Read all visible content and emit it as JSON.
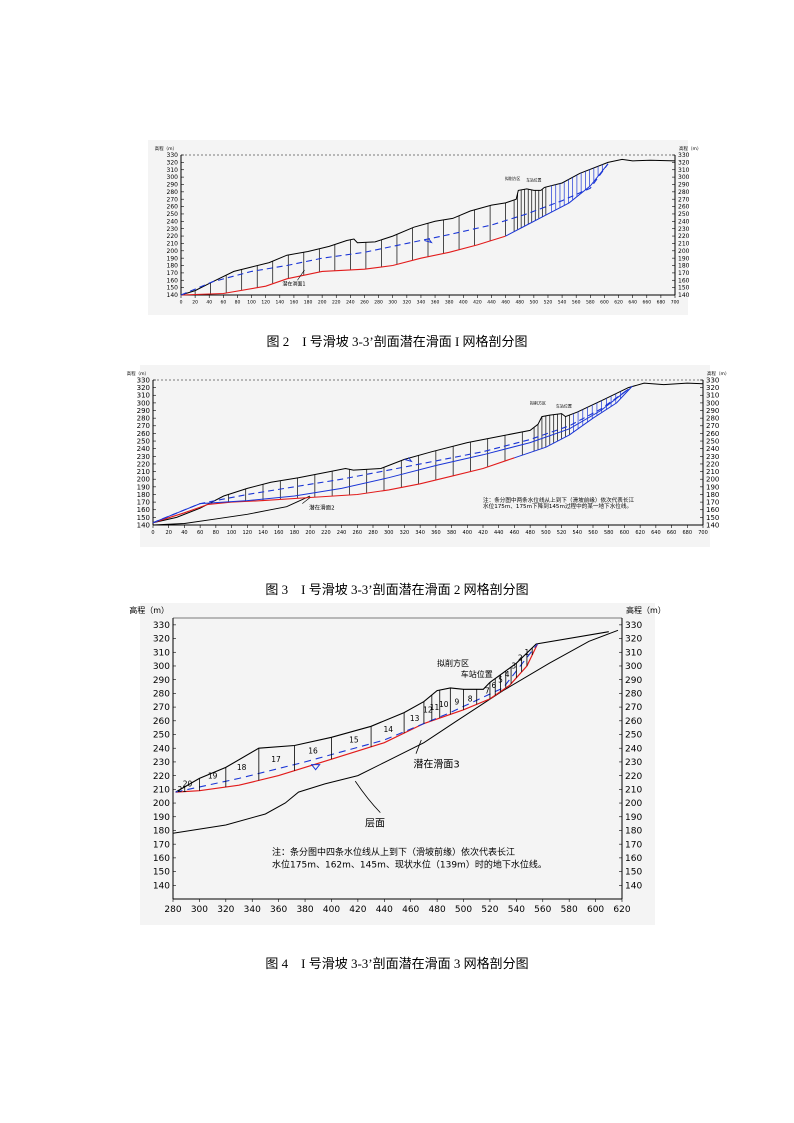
{
  "colors": {
    "ground": "#000000",
    "slip": "#e21b1b",
    "water": "#1a35d6",
    "panel": "#f4f4f4"
  },
  "figures": [
    {
      "id": "fig2",
      "caption": "图 2　I 号滑坡 3-3’剖面潜在滑面 I 网格剖分图",
      "y_axis_title_left": "高程（m）",
      "y_axis_title_right": "高程（m）",
      "y_ticks": [
        "330",
        "320",
        "310",
        "300",
        "290",
        "280",
        "270",
        "260",
        "250",
        "240",
        "230",
        "220",
        "210",
        "200",
        "190",
        "180",
        "170",
        "160",
        "150",
        "140"
      ],
      "x_ticks": [
        "0",
        "20",
        "40",
        "60",
        "80",
        "100",
        "120",
        "140",
        "160",
        "180",
        "200",
        "220",
        "240",
        "260",
        "280",
        "300",
        "320",
        "340",
        "360",
        "380",
        "400",
        "420",
        "440",
        "460",
        "480",
        "500",
        "520",
        "540",
        "560",
        "580",
        "600",
        "620",
        "640",
        "660",
        "680",
        "700"
      ],
      "labels": {
        "surface": "潜在滑面1",
        "note1": "拟削方区",
        "note2": "车站位置"
      }
    },
    {
      "id": "fig3",
      "caption": "图 3　I 号滑坡 3-3’剖面潜在滑面 2 网格剖分图",
      "y_axis_title_left": "高程（m）",
      "y_axis_title_right": "高程（m）",
      "y_ticks": [
        "330",
        "320",
        "310",
        "300",
        "290",
        "280",
        "270",
        "260",
        "250",
        "240",
        "230",
        "220",
        "210",
        "200",
        "190",
        "180",
        "170",
        "160",
        "150",
        "140"
      ],
      "x_ticks": [
        "0",
        "20",
        "40",
        "60",
        "80",
        "100",
        "120",
        "140",
        "160",
        "180",
        "200",
        "220",
        "240",
        "260",
        "280",
        "300",
        "320",
        "340",
        "360",
        "380",
        "400",
        "420",
        "440",
        "460",
        "480",
        "500",
        "520",
        "540",
        "560",
        "580",
        "600",
        "620",
        "640",
        "660",
        "680",
        "700"
      ],
      "labels": {
        "surface": "潜在滑面2",
        "note1": "拟削方区",
        "note2": "车站位置",
        "note_line1": "注：条分图中两条水位线从上到下（滑坡前缘）依次代表长江",
        "note_line2": "水位175m、175m下降到145m过程中的某一地下水位线。"
      }
    },
    {
      "id": "fig4",
      "caption": "图 4　I 号滑坡 3-3’剖面潜在滑面 3 网格剖分图",
      "y_axis_title_left": "高程（m）",
      "y_axis_title_right": "高程（m）",
      "y_ticks": [
        "330",
        "320",
        "310",
        "300",
        "290",
        "280",
        "270",
        "260",
        "250",
        "240",
        "230",
        "220",
        "210",
        "200",
        "190",
        "180",
        "170",
        "160",
        "150",
        "140"
      ],
      "x_ticks": [
        "280",
        "300",
        "320",
        "340",
        "360",
        "380",
        "400",
        "420",
        "440",
        "460",
        "480",
        "500",
        "520",
        "540",
        "560",
        "580",
        "600",
        "620"
      ],
      "slices": [
        "1",
        "2",
        "3",
        "4",
        "5",
        "6",
        "7",
        "8",
        "9",
        "10",
        "11",
        "12",
        "13",
        "14",
        "15",
        "16",
        "17",
        "18",
        "19",
        "20",
        "21"
      ],
      "labels": {
        "surface": "潜在滑面3",
        "layer": "层面",
        "note1": "拟削方区",
        "note2": "车站位置",
        "note_line1": "注：条分图中四条水位线从上到下（滑坡前缘）依次代表长江",
        "note_line2": "水位175m、162m、145m、现状水位（139m）时的地下水位线。"
      }
    }
  ]
}
